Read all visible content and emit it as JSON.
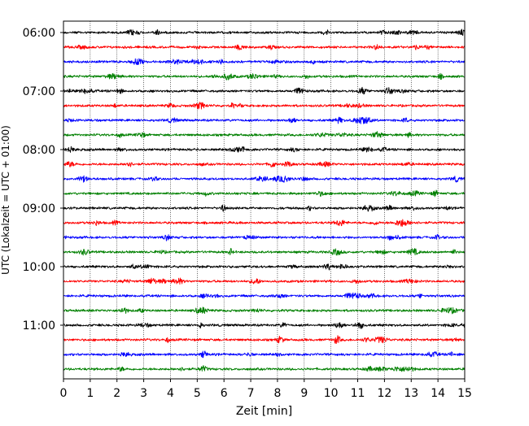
{
  "chart_data": {
    "type": "line",
    "title": "",
    "xlabel": "Zeit  [min]",
    "ylabel": "UTC (Lokalzeit = UTC + 01:00)",
    "xlim": [
      0,
      15
    ],
    "xticks": [
      0,
      1,
      2,
      3,
      4,
      5,
      6,
      7,
      8,
      9,
      10,
      11,
      12,
      13,
      14,
      15
    ],
    "ytick_labels": [
      "06:00",
      "07:00",
      "08:00",
      "09:00",
      "10:00",
      "11:00"
    ],
    "start_time": "06:00",
    "trace_interval_minutes": 15,
    "trace_count": 24,
    "color_cycle": [
      "#000000",
      "#ff0000",
      "#0000ff",
      "#008000"
    ],
    "grid": {
      "x": true,
      "y": false,
      "style": "dotted"
    }
  }
}
